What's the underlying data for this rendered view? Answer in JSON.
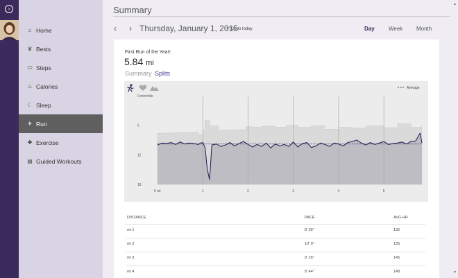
{
  "rail": {
    "expand_icon": "expand-arrow-icon",
    "avatar": "user-avatar"
  },
  "sidebar": {
    "items": [
      {
        "label": "Home",
        "icon": "home-icon",
        "glyph": "⌂"
      },
      {
        "label": "Bests",
        "icon": "trophy-icon",
        "glyph": "♛"
      },
      {
        "label": "Steps",
        "icon": "footsteps-icon",
        "glyph": "⬭"
      },
      {
        "label": "Calories",
        "icon": "flame-icon",
        "glyph": "♨"
      },
      {
        "label": "Sleep",
        "icon": "moon-icon",
        "glyph": "☾"
      },
      {
        "label": "Run",
        "icon": "runner-icon",
        "glyph": "✈",
        "active": true
      },
      {
        "label": "Exercise",
        "icon": "dumbbell-icon",
        "glyph": "✚"
      },
      {
        "label": "Guided Workouts",
        "icon": "clipboard-icon",
        "glyph": "▤"
      }
    ]
  },
  "header": {
    "title": "Summary",
    "date": "Thursday, January 1, 2015",
    "goto_today": "Go to today",
    "tabs": [
      "Day",
      "Week",
      "Month"
    ],
    "active_tab": "Day"
  },
  "run": {
    "name": "First Run of the Year!",
    "distance_value": "5.84",
    "distance_unit": "mi",
    "subtabs": [
      "Summary",
      "Splits"
    ]
  },
  "chart_data": {
    "type": "line",
    "ylabel": "min/mile",
    "y_ticks": [
      "0 min/mile",
      "6",
      "12",
      "18"
    ],
    "x_ticks": [
      "0 mi",
      "1",
      "2",
      "3",
      "4",
      "5"
    ],
    "xlim": [
      0,
      5.84
    ],
    "ylim": [
      0,
      18
    ],
    "y_inverted": true,
    "legend": {
      "label": "Average",
      "placement": "top-right"
    },
    "average_pace": 9.8,
    "series": [
      {
        "x": [
          0,
          0.1,
          0.2,
          0.3,
          0.4,
          0.5,
          0.6,
          0.7,
          0.8,
          0.9,
          0.95,
          1.0,
          1.05,
          1.1,
          1.15,
          1.2,
          1.3,
          1.4,
          1.5,
          1.6,
          1.7,
          1.8,
          1.9,
          2.0,
          2.1,
          2.2,
          2.3,
          2.4,
          2.5,
          2.6,
          2.7,
          2.8,
          2.9,
          3.0,
          3.1,
          3.2,
          3.3,
          3.4,
          3.5,
          3.6,
          3.7,
          3.8,
          3.9,
          4.0,
          4.1,
          4.2,
          4.3,
          4.4,
          4.5,
          4.6,
          4.7,
          4.8,
          4.9,
          5.0,
          5.1,
          5.2,
          5.3,
          5.4,
          5.5,
          5.6,
          5.7,
          5.8,
          5.84
        ],
        "values": [
          10.0,
          9.6,
          9.7,
          9.5,
          9.9,
          9.4,
          9.8,
          9.6,
          9.7,
          9.9,
          9.6,
          9.5,
          10.5,
          15.0,
          17.0,
          10.0,
          9.8,
          10.3,
          10.0,
          9.5,
          10.2,
          9.7,
          9.3,
          9.9,
          10.4,
          9.9,
          10.3,
          9.6,
          10.6,
          9.8,
          10.2,
          9.9,
          10.3,
          9.4,
          10.4,
          9.7,
          9.5,
          10.5,
          10.2,
          9.6,
          9.9,
          10.3,
          9.6,
          9.8,
          10.2,
          9.5,
          9.3,
          9.0,
          9.6,
          10.0,
          9.5,
          9.9,
          9.6,
          9.3,
          9.9,
          9.7,
          9.6,
          9.4,
          9.8,
          9.3,
          9.2,
          7.6,
          9.6
        ]
      }
    ],
    "hr_ceiling_pace": [
      [
        0,
        7.6
      ],
      [
        0.4,
        7.4
      ],
      [
        0.9,
        7.9
      ],
      [
        1.0,
        7.0
      ],
      [
        1.05,
        5.0
      ],
      [
        1.15,
        6.1
      ],
      [
        1.35,
        7.0
      ],
      [
        1.7,
        6.9
      ],
      [
        1.95,
        6.3
      ],
      [
        2.1,
        6.4
      ],
      [
        2.3,
        6.2
      ],
      [
        2.6,
        6.4
      ],
      [
        2.85,
        6.0
      ],
      [
        3.1,
        6.4
      ],
      [
        3.4,
        6.1
      ],
      [
        3.7,
        6.8
      ],
      [
        4.0,
        6.4
      ],
      [
        4.3,
        6.6
      ],
      [
        4.6,
        6.1
      ],
      [
        5.0,
        6.5
      ],
      [
        5.3,
        5.7
      ],
      [
        5.6,
        6.4
      ],
      [
        5.84,
        6.0
      ]
    ],
    "colors": {
      "pace": "#2e2357",
      "average": "#4d3f7a",
      "pace_fill": "#bdbdc3",
      "hr_fill": "#dadada"
    }
  },
  "splits": {
    "columns": [
      "DISTANCE",
      "PACE",
      "AVG HR"
    ],
    "rows": [
      [
        "mi 1",
        "8' 35\"",
        "132"
      ],
      [
        "mi 2",
        "10' 0\"",
        "135"
      ],
      [
        "mi 3",
        "9' 26\"",
        "145"
      ],
      [
        "mi 4",
        "8' 44\"",
        "148"
      ]
    ]
  }
}
